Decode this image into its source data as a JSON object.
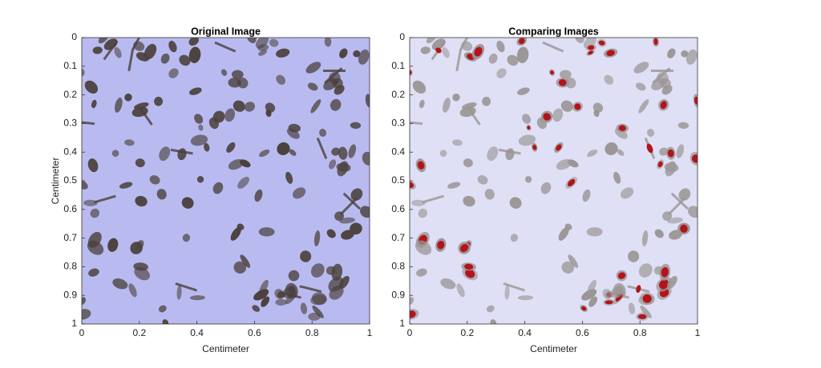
{
  "chart_data": [
    {
      "type": "image",
      "title": "Original Image",
      "xlabel": "Centimeter",
      "ylabel": "Centimeter",
      "xlim": [
        0,
        1
      ],
      "ylim": [
        0,
        1
      ],
      "y_direction": "reverse",
      "xticks": [
        0,
        0.2,
        0.4,
        0.6,
        0.8,
        1
      ],
      "yticks": [
        0,
        0.1,
        0.2,
        0.3,
        0.4,
        0.5,
        0.6,
        0.7,
        0.8,
        0.9,
        1
      ],
      "background_color": "#b9bbf0",
      "particle_color": "#4a403c",
      "highlight": false
    },
    {
      "type": "image",
      "title": "Comparing Images",
      "xlabel": "Centimeter",
      "xlim": [
        0,
        1
      ],
      "ylim": [
        0,
        1
      ],
      "y_direction": "reverse",
      "xticks": [
        0,
        0.2,
        0.4,
        0.6,
        0.8,
        1
      ],
      "yticks": [
        0,
        0.1,
        0.2,
        0.3,
        0.4,
        0.5,
        0.6,
        0.7,
        0.8,
        0.9,
        1
      ],
      "background_color": "#dfe0f6",
      "particle_color": "#9a9594",
      "highlight": true,
      "highlight_color": "#b3141b"
    }
  ]
}
